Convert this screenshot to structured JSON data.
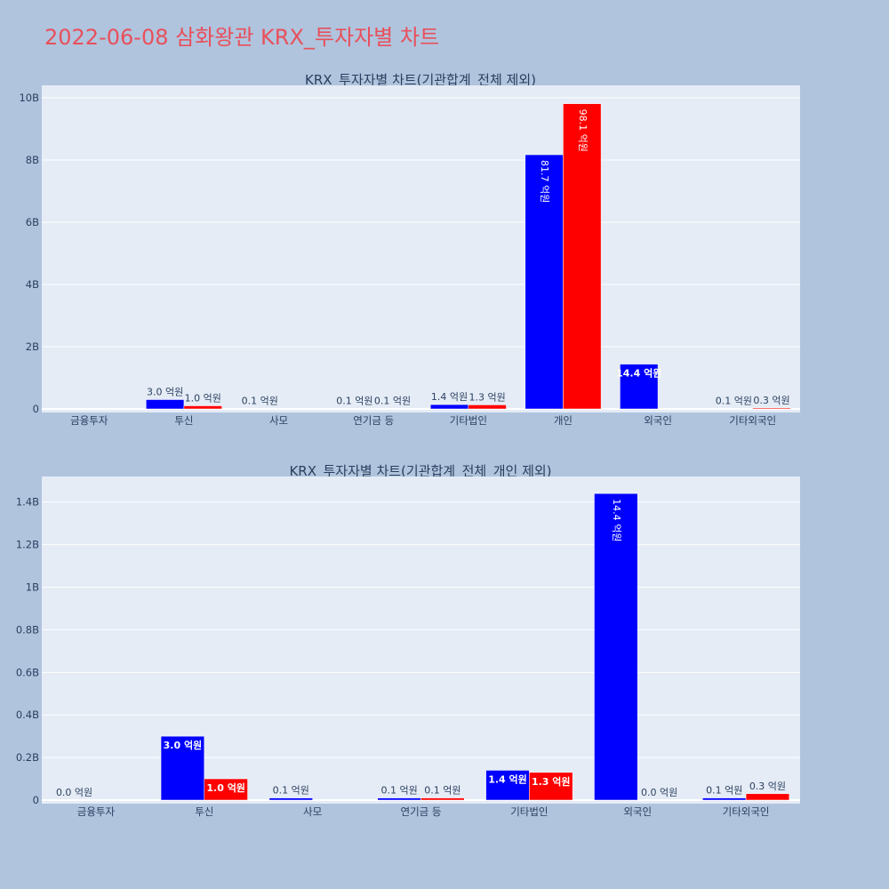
{
  "page": {
    "title": "2022-06-08 삼화왕관 KRX_투자자별 차트",
    "title_color": "#e8505b",
    "background": "#b0c4de",
    "plot_background": "#e5ecf6",
    "text_color": "#2a3f5f"
  },
  "chart_data": [
    {
      "type": "bar",
      "title": "KRX_투자자별 차트(기관합계_전체 제외)",
      "categories": [
        "금융투자",
        "투신",
        "사모",
        "연기금 등",
        "기타법인",
        "개인",
        "외국인",
        "기타외국인"
      ],
      "series": [
        {
          "color": "#0000ff",
          "values": [
            0,
            300000000,
            10000000,
            10000000,
            140000000,
            8170000000,
            1440000000,
            10000000
          ],
          "labels": [
            "",
            "3.0 억원",
            "0.1 억원",
            "0.1 억원",
            "1.4 억원",
            "81.7 억원",
            "14.4 억원",
            "0.1 억원"
          ]
        },
        {
          "color": "#ff0000",
          "values": [
            0,
            100000000,
            0,
            10000000,
            130000000,
            9810000000,
            0,
            30000000
          ],
          "labels": [
            "",
            "1.0 억원",
            "",
            "0.1 억원",
            "1.3 억원",
            "98.1 억원",
            "",
            "0.3 억원"
          ]
        }
      ],
      "ylim": [
        0,
        10400000000
      ],
      "yticks": [
        0,
        2000000000,
        4000000000,
        6000000000,
        8000000000,
        10000000000
      ],
      "yticklabels": [
        "0",
        "2B",
        "4B",
        "6B",
        "8B",
        "10B"
      ],
      "grid": true,
      "xlabel": "",
      "ylabel": ""
    },
    {
      "type": "bar",
      "title": "KRX_투자자별 차트(기관합계_전체_개인 제외)",
      "categories": [
        "금융투자",
        "투신",
        "사모",
        "연기금 등",
        "기타법인",
        "외국인",
        "기타외국인"
      ],
      "series": [
        {
          "color": "#0000ff",
          "values": [
            0,
            300000000,
            10000000,
            10000000,
            140000000,
            1440000000,
            10000000
          ],
          "labels": [
            "0.0 억원",
            "3.0 억원",
            "0.1 억원",
            "0.1 억원",
            "1.4 억원",
            "14.4 억원",
            "0.1 억원"
          ]
        },
        {
          "color": "#ff0000",
          "values": [
            0,
            100000000,
            0,
            10000000,
            130000000,
            0,
            30000000
          ],
          "labels": [
            "",
            "1.0 억원",
            "",
            "0.1 억원",
            "1.3 억원",
            "0.0 억원",
            "0.3 억원"
          ]
        }
      ],
      "ylim": [
        0,
        1520000000
      ],
      "yticks": [
        0,
        200000000,
        400000000,
        600000000,
        800000000,
        1000000000,
        1200000000,
        1400000000
      ],
      "yticklabels": [
        "0",
        "0.2B",
        "0.4B",
        "0.6B",
        "0.8B",
        "1B",
        "1.2B",
        "1.4B"
      ],
      "grid": true,
      "xlabel": "",
      "ylabel": ""
    }
  ]
}
